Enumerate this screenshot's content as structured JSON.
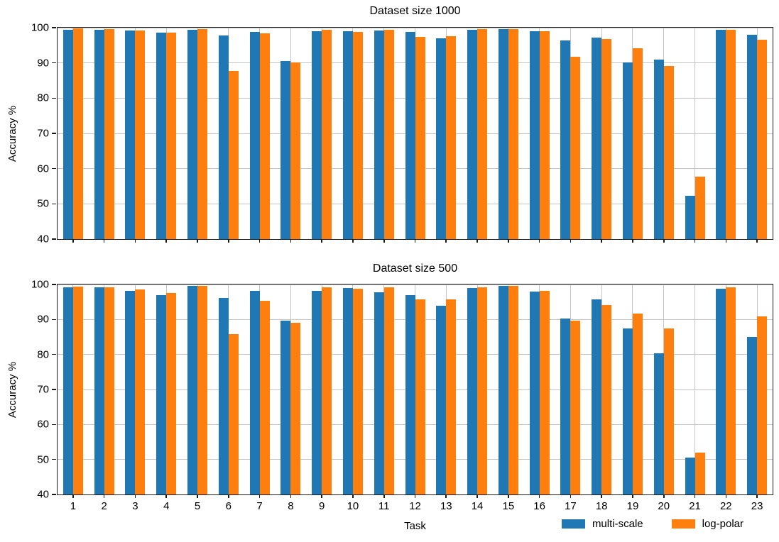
{
  "figure": {
    "background": "#ffffff"
  },
  "colors": {
    "multi_scale": "#1f77b4",
    "log_polar": "#ff7f0e",
    "grid": "#c4c4c4",
    "spine": "#1a1a1a",
    "text": "#000000"
  },
  "legend": {
    "position": "bottom-right",
    "items": [
      {
        "label": "multi-scale",
        "color": "#1f77b4"
      },
      {
        "label": "log-polar",
        "color": "#ff7f0e"
      }
    ]
  },
  "chart_data": [
    {
      "type": "bar",
      "title": "Dataset size 1000",
      "xlabel": "",
      "ylabel": "Accuracy %",
      "ylim": [
        40,
        100
      ],
      "yticks": [
        40,
        50,
        60,
        70,
        80,
        90,
        100
      ],
      "grid": true,
      "show_x_tick_labels": false,
      "categories": [
        "1",
        "2",
        "3",
        "4",
        "5",
        "6",
        "7",
        "8",
        "9",
        "10",
        "11",
        "12",
        "13",
        "14",
        "15",
        "16",
        "17",
        "18",
        "19",
        "20",
        "21",
        "22",
        "23"
      ],
      "series": [
        {
          "name": "multi-scale",
          "color": "#1f77b4",
          "values": [
            99.7,
            99.7,
            99.4,
            98.8,
            99.6,
            98.0,
            99.0,
            90.7,
            99.1,
            99.1,
            99.4,
            99.0,
            97.2,
            99.7,
            99.8,
            99.1,
            96.6,
            97.4,
            90.4,
            91.2,
            52.5,
            99.5,
            98.1
          ]
        },
        {
          "name": "log-polar",
          "color": "#ff7f0e",
          "values": [
            100.0,
            99.9,
            99.3,
            98.7,
            99.9,
            88.0,
            98.6,
            90.3,
            99.5,
            98.9,
            99.7,
            97.5,
            97.8,
            99.9,
            99.9,
            99.2,
            92.0,
            96.9,
            94.3,
            89.3,
            58.0,
            99.7,
            96.8
          ]
        }
      ]
    },
    {
      "type": "bar",
      "title": "Dataset size 500",
      "xlabel": "Task",
      "ylabel": "Accuracy %",
      "ylim": [
        40,
        100
      ],
      "yticks": [
        40,
        50,
        60,
        70,
        80,
        90,
        100
      ],
      "grid": true,
      "show_x_tick_labels": true,
      "categories": [
        "1",
        "2",
        "3",
        "4",
        "5",
        "6",
        "7",
        "8",
        "9",
        "10",
        "11",
        "12",
        "13",
        "14",
        "15",
        "16",
        "17",
        "18",
        "19",
        "20",
        "21",
        "22",
        "23"
      ],
      "series": [
        {
          "name": "multi-scale",
          "color": "#1f77b4",
          "values": [
            99.4,
            99.3,
            98.3,
            97.2,
            99.8,
            96.3,
            98.3,
            89.9,
            98.3,
            99.1,
            98.0,
            97.2,
            94.1,
            99.2,
            99.8,
            98.2,
            90.5,
            96.0,
            87.6,
            80.6,
            50.8,
            98.9,
            85.2
          ]
        },
        {
          "name": "log-polar",
          "color": "#ff7f0e",
          "values": [
            99.6,
            99.4,
            98.8,
            97.7,
            99.7,
            86.1,
            95.6,
            89.2,
            99.3,
            98.9,
            99.3,
            96.0,
            96.0,
            99.3,
            99.7,
            98.3,
            89.8,
            94.4,
            91.8,
            87.6,
            52.2,
            99.3,
            91.1
          ]
        }
      ]
    }
  ]
}
